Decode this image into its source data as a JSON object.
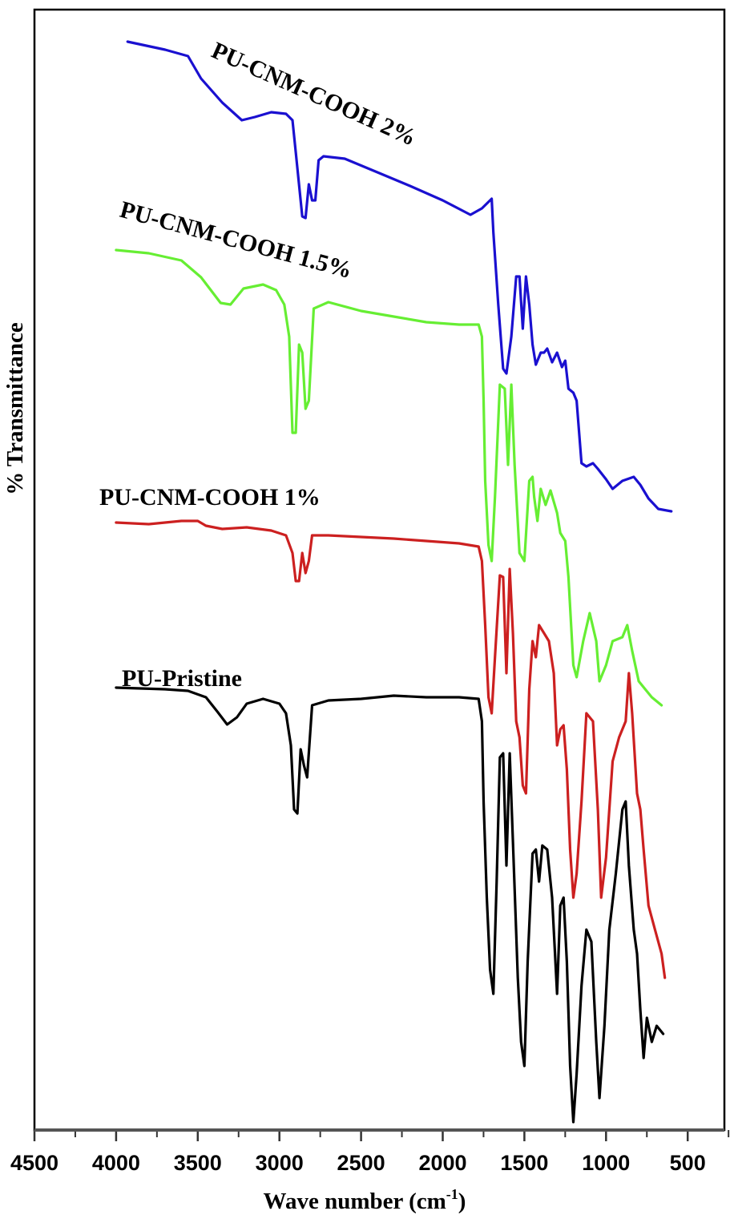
{
  "chart_data": {
    "type": "line",
    "title": "",
    "xlabel": "Wave number (cm-1)",
    "xlabel_main": "Wave number (cm",
    "xlabel_sup": "-1",
    "xlabel_close": ")",
    "ylabel": "% Transmittance",
    "xlim": [
      4500,
      250
    ],
    "x_reversed": true,
    "x_ticks": [
      4500,
      4000,
      3500,
      3000,
      2500,
      2000,
      1500,
      1000,
      500
    ],
    "x_minor_ticks": [
      4250,
      3750,
      3250,
      2750,
      2250,
      1750,
      1250,
      750,
      250
    ],
    "y_ticks": [],
    "grid": false,
    "legend": "inline labels",
    "y_note": "arbitrary stacked offsets; values are approximate relative transmittance in pixel rows (smaller = higher)",
    "series": [
      {
        "name": "PU-CNM-COOH 2%",
        "color": "#1a10d0",
        "label_pos": [
          262,
          70
        ],
        "label_rotate": 24,
        "points": [
          [
            3930,
            52
          ],
          [
            3700,
            62
          ],
          [
            3560,
            70
          ],
          [
            3480,
            98
          ],
          [
            3350,
            128
          ],
          [
            3230,
            150
          ],
          [
            3150,
            146
          ],
          [
            3050,
            140
          ],
          [
            2960,
            142
          ],
          [
            2920,
            150
          ],
          [
            2900,
            190
          ],
          [
            2860,
            270
          ],
          [
            2840,
            272
          ],
          [
            2820,
            230
          ],
          [
            2800,
            250
          ],
          [
            2780,
            250
          ],
          [
            2760,
            200
          ],
          [
            2730,
            195
          ],
          [
            2600,
            198
          ],
          [
            2400,
            215
          ],
          [
            2200,
            232
          ],
          [
            2000,
            250
          ],
          [
            1830,
            268
          ],
          [
            1760,
            260
          ],
          [
            1700,
            248
          ],
          [
            1690,
            290
          ],
          [
            1660,
            380
          ],
          [
            1630,
            460
          ],
          [
            1610,
            466
          ],
          [
            1580,
            420
          ],
          [
            1550,
            345
          ],
          [
            1530,
            345
          ],
          [
            1510,
            410
          ],
          [
            1490,
            345
          ],
          [
            1470,
            380
          ],
          [
            1450,
            430
          ],
          [
            1430,
            455
          ],
          [
            1400,
            440
          ],
          [
            1380,
            440
          ],
          [
            1360,
            435
          ],
          [
            1330,
            452
          ],
          [
            1300,
            440
          ],
          [
            1270,
            458
          ],
          [
            1250,
            450
          ],
          [
            1230,
            485
          ],
          [
            1200,
            490
          ],
          [
            1180,
            500
          ],
          [
            1150,
            578
          ],
          [
            1120,
            582
          ],
          [
            1080,
            578
          ],
          [
            1050,
            585
          ],
          [
            1000,
            598
          ],
          [
            960,
            610
          ],
          [
            900,
            600
          ],
          [
            830,
            595
          ],
          [
            790,
            605
          ],
          [
            740,
            622
          ],
          [
            680,
            635
          ],
          [
            600,
            638
          ]
        ]
      },
      {
        "name": "PU-CNM-COOH 1.5%",
        "color": "#66ee33",
        "label_pos": [
          148,
          270
        ],
        "label_rotate": 15,
        "points": [
          [
            4000,
            312
          ],
          [
            3800,
            316
          ],
          [
            3600,
            325
          ],
          [
            3480,
            346
          ],
          [
            3360,
            378
          ],
          [
            3300,
            380
          ],
          [
            3220,
            360
          ],
          [
            3100,
            355
          ],
          [
            3020,
            362
          ],
          [
            2970,
            380
          ],
          [
            2940,
            420
          ],
          [
            2920,
            540
          ],
          [
            2900,
            540
          ],
          [
            2880,
            430
          ],
          [
            2860,
            440
          ],
          [
            2840,
            510
          ],
          [
            2820,
            500
          ],
          [
            2790,
            385
          ],
          [
            2700,
            377
          ],
          [
            2500,
            388
          ],
          [
            2300,
            395
          ],
          [
            2100,
            402
          ],
          [
            1900,
            405
          ],
          [
            1780,
            405
          ],
          [
            1760,
            420
          ],
          [
            1750,
            500
          ],
          [
            1740,
            600
          ],
          [
            1720,
            680
          ],
          [
            1700,
            700
          ],
          [
            1680,
            620
          ],
          [
            1650,
            480
          ],
          [
            1620,
            485
          ],
          [
            1600,
            580
          ],
          [
            1580,
            480
          ],
          [
            1560,
            580
          ],
          [
            1530,
            690
          ],
          [
            1500,
            700
          ],
          [
            1470,
            600
          ],
          [
            1450,
            595
          ],
          [
            1440,
            620
          ],
          [
            1420,
            650
          ],
          [
            1400,
            610
          ],
          [
            1370,
            630
          ],
          [
            1340,
            612
          ],
          [
            1300,
            640
          ],
          [
            1280,
            665
          ],
          [
            1250,
            675
          ],
          [
            1230,
            720
          ],
          [
            1200,
            830
          ],
          [
            1180,
            845
          ],
          [
            1140,
            800
          ],
          [
            1100,
            765
          ],
          [
            1060,
            800
          ],
          [
            1040,
            850
          ],
          [
            1000,
            830
          ],
          [
            960,
            800
          ],
          [
            900,
            795
          ],
          [
            870,
            780
          ],
          [
            840,
            812
          ],
          [
            800,
            850
          ],
          [
            760,
            860
          ],
          [
            720,
            870
          ],
          [
            660,
            880
          ]
        ]
      },
      {
        "name": "PU-CNM-COOH 1%",
        "color": "#cc2020",
        "label_pos": [
          124,
          630
        ],
        "label_rotate": 0,
        "points": [
          [
            4000,
            652
          ],
          [
            3800,
            654
          ],
          [
            3600,
            650
          ],
          [
            3500,
            650
          ],
          [
            3450,
            656
          ],
          [
            3350,
            660
          ],
          [
            3200,
            658
          ],
          [
            3050,
            662
          ],
          [
            2960,
            668
          ],
          [
            2920,
            690
          ],
          [
            2900,
            725
          ],
          [
            2880,
            725
          ],
          [
            2860,
            690
          ],
          [
            2840,
            715
          ],
          [
            2820,
            700
          ],
          [
            2800,
            668
          ],
          [
            2700,
            668
          ],
          [
            2500,
            670
          ],
          [
            2300,
            672
          ],
          [
            2100,
            675
          ],
          [
            1900,
            678
          ],
          [
            1780,
            682
          ],
          [
            1760,
            700
          ],
          [
            1740,
            780
          ],
          [
            1720,
            870
          ],
          [
            1700,
            890
          ],
          [
            1680,
            820
          ],
          [
            1650,
            718
          ],
          [
            1630,
            720
          ],
          [
            1610,
            840
          ],
          [
            1590,
            710
          ],
          [
            1570,
            790
          ],
          [
            1550,
            900
          ],
          [
            1530,
            920
          ],
          [
            1510,
            980
          ],
          [
            1490,
            990
          ],
          [
            1470,
            860
          ],
          [
            1450,
            800
          ],
          [
            1430,
            820
          ],
          [
            1410,
            780
          ],
          [
            1380,
            790
          ],
          [
            1350,
            800
          ],
          [
            1320,
            840
          ],
          [
            1300,
            930
          ],
          [
            1280,
            910
          ],
          [
            1260,
            905
          ],
          [
            1240,
            960
          ],
          [
            1220,
            1060
          ],
          [
            1200,
            1120
          ],
          [
            1180,
            1090
          ],
          [
            1150,
            1000
          ],
          [
            1120,
            890
          ],
          [
            1080,
            900
          ],
          [
            1050,
            1010
          ],
          [
            1030,
            1120
          ],
          [
            1000,
            1070
          ],
          [
            960,
            950
          ],
          [
            920,
            920
          ],
          [
            880,
            900
          ],
          [
            860,
            840
          ],
          [
            840,
            890
          ],
          [
            810,
            990
          ],
          [
            790,
            1010
          ],
          [
            770,
            1060
          ],
          [
            740,
            1130
          ],
          [
            700,
            1160
          ],
          [
            660,
            1190
          ],
          [
            640,
            1220
          ]
        ]
      },
      {
        "name": "PU-Pristine",
        "color": "#000000",
        "label_pos": [
          152,
          856
        ],
        "label_rotate": 0,
        "points": [
          [
            4000,
            858
          ],
          [
            3700,
            860
          ],
          [
            3560,
            862
          ],
          [
            3450,
            870
          ],
          [
            3380,
            888
          ],
          [
            3320,
            904
          ],
          [
            3260,
            895
          ],
          [
            3200,
            878
          ],
          [
            3100,
            872
          ],
          [
            3000,
            878
          ],
          [
            2960,
            890
          ],
          [
            2930,
            930
          ],
          [
            2910,
            1010
          ],
          [
            2890,
            1015
          ],
          [
            2870,
            935
          ],
          [
            2850,
            955
          ],
          [
            2830,
            970
          ],
          [
            2800,
            880
          ],
          [
            2700,
            874
          ],
          [
            2500,
            872
          ],
          [
            2300,
            868
          ],
          [
            2100,
            870
          ],
          [
            1900,
            870
          ],
          [
            1780,
            872
          ],
          [
            1760,
            900
          ],
          [
            1750,
            1000
          ],
          [
            1730,
            1120
          ],
          [
            1710,
            1210
          ],
          [
            1690,
            1240
          ],
          [
            1670,
            1100
          ],
          [
            1650,
            945
          ],
          [
            1630,
            940
          ],
          [
            1610,
            1080
          ],
          [
            1590,
            940
          ],
          [
            1570,
            1050
          ],
          [
            1540,
            1220
          ],
          [
            1520,
            1300
          ],
          [
            1500,
            1330
          ],
          [
            1480,
            1200
          ],
          [
            1450,
            1065
          ],
          [
            1430,
            1060
          ],
          [
            1410,
            1100
          ],
          [
            1390,
            1055
          ],
          [
            1360,
            1060
          ],
          [
            1330,
            1120
          ],
          [
            1300,
            1240
          ],
          [
            1280,
            1130
          ],
          [
            1260,
            1120
          ],
          [
            1240,
            1200
          ],
          [
            1220,
            1330
          ],
          [
            1200,
            1400
          ],
          [
            1180,
            1340
          ],
          [
            1150,
            1230
          ],
          [
            1120,
            1160
          ],
          [
            1090,
            1175
          ],
          [
            1060,
            1300
          ],
          [
            1040,
            1370
          ],
          [
            1010,
            1280
          ],
          [
            980,
            1160
          ],
          [
            940,
            1090
          ],
          [
            900,
            1010
          ],
          [
            880,
            1000
          ],
          [
            860,
            1080
          ],
          [
            830,
            1160
          ],
          [
            810,
            1190
          ],
          [
            790,
            1260
          ],
          [
            770,
            1320
          ],
          [
            750,
            1270
          ],
          [
            720,
            1300
          ],
          [
            690,
            1280
          ],
          [
            650,
            1290
          ]
        ]
      }
    ]
  }
}
